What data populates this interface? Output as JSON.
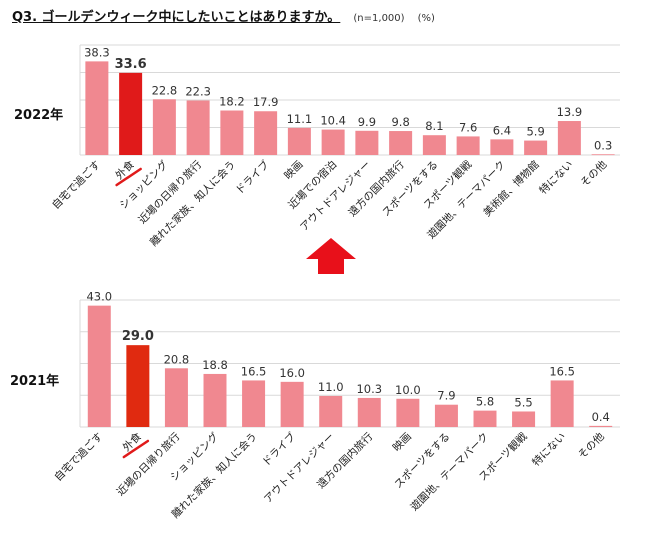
{
  "title": "Q3. ゴールデンウィーク中にしたいことはありますか。",
  "sample": "(n=1,000)",
  "unit": "(%)",
  "colors": {
    "bar": "#f08890",
    "highlight": "#e01a1a",
    "highlight_2021": "#e02a10",
    "grid": "#d9d9d9",
    "arrow": "#e8101a",
    "underline": "#e01a1a"
  },
  "chart_data": [
    {
      "type": "bar",
      "year_label": "2022年",
      "highlight_category": "外食",
      "ylim": [
        0,
        45
      ],
      "grid": true,
      "categories": [
        "自宅で過ごす",
        "外食",
        "ショッピング",
        "近場の日帰り旅行",
        "離れた家族、知人に会う",
        "ドライブ",
        "映画",
        "近場での宿泊",
        "アウトドアレジャー",
        "遠方の国内旅行",
        "スポーツをする",
        "スポーツ観戦",
        "遊園地、テーマパーク",
        "美術館、博物館",
        "特にない",
        "その他"
      ],
      "values": [
        38.3,
        33.6,
        22.8,
        22.3,
        18.2,
        17.9,
        11.1,
        10.4,
        9.9,
        9.8,
        8.1,
        7.6,
        6.4,
        5.9,
        13.9,
        0.3
      ],
      "labels": [
        "38.3",
        "33.6",
        "22.8",
        "22.3",
        "18.2",
        "17.9",
        "11.1",
        "10.4",
        "9.9",
        "9.8",
        "8.1",
        "7.6",
        "6.4",
        "5.9",
        "13.9",
        "0.3"
      ]
    },
    {
      "type": "bar",
      "year_label": "2021年",
      "highlight_category": "外食",
      "ylim": [
        0,
        45
      ],
      "grid": true,
      "categories": [
        "自宅で過ごす",
        "外食",
        "近場の日帰り旅行",
        "ショッピング",
        "離れた家族、知人に会う",
        "ドライブ",
        "アウトドアレジャー",
        "遠方の国内旅行",
        "映画",
        "スポーツをする",
        "遊園地、テーマパーク",
        "スポーツ観戦",
        "特にない",
        "その他"
      ],
      "values": [
        43.0,
        29.0,
        20.8,
        18.8,
        16.5,
        16.0,
        11.0,
        10.3,
        10.0,
        7.9,
        5.8,
        5.5,
        16.5,
        0.4
      ],
      "labels": [
        "43.0",
        "29.0",
        "20.8",
        "18.8",
        "16.5",
        "16.0",
        "11.0",
        "10.3",
        "10.0",
        "7.9",
        "5.8",
        "5.5",
        "16.5",
        "0.4"
      ]
    }
  ]
}
